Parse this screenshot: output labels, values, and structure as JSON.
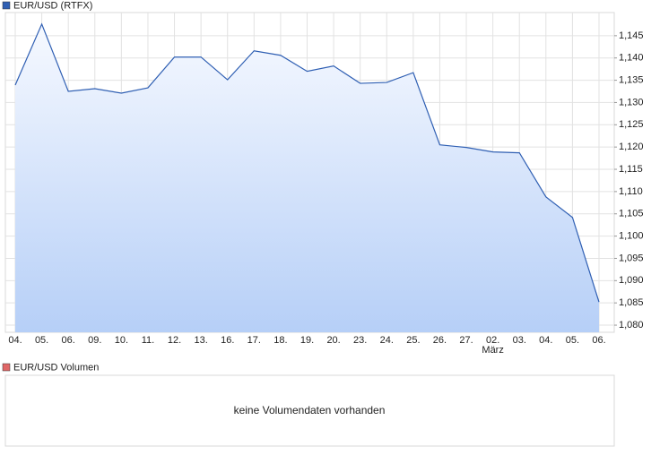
{
  "chart_data": [
    {
      "type": "area",
      "title": "EUR/USD (RTFX)",
      "categories": [
        "04.",
        "05.",
        "06.",
        "09.",
        "10.",
        "11.",
        "12.",
        "13.",
        "16.",
        "17.",
        "18.",
        "19.",
        "20.",
        "23.",
        "24.",
        "25.",
        "26.",
        "27.",
        "02.",
        "03.",
        "04.",
        "05.",
        "06."
      ],
      "x_sublabels": [
        null,
        null,
        null,
        null,
        null,
        null,
        null,
        null,
        null,
        null,
        null,
        null,
        null,
        null,
        null,
        null,
        null,
        null,
        "März",
        null,
        null,
        null,
        null
      ],
      "series": [
        {
          "name": "EUR/USD (RTFX)",
          "color": "#2f5fb3",
          "values": [
            1.1339,
            1.1476,
            1.1325,
            1.1331,
            1.1321,
            1.1333,
            1.1402,
            1.1402,
            1.1351,
            1.1416,
            1.1406,
            1.137,
            1.1382,
            1.1343,
            1.1345,
            1.1367,
            1.1205,
            1.1199,
            1.1189,
            1.1187,
            1.1088,
            1.1042,
            1.0852
          ]
        }
      ],
      "ylim": [
        1.0784,
        1.1502
      ],
      "yticks": [
        {
          "value": 1.08,
          "label": "1,080"
        },
        {
          "value": 1.085,
          "label": "1,085"
        },
        {
          "value": 1.09,
          "label": "1,090"
        },
        {
          "value": 1.095,
          "label": "1,095"
        },
        {
          "value": 1.1,
          "label": "1,100"
        },
        {
          "value": 1.105,
          "label": "1,105"
        },
        {
          "value": 1.11,
          "label": "1,110"
        },
        {
          "value": 1.115,
          "label": "1,115"
        },
        {
          "value": 1.12,
          "label": "1,120"
        },
        {
          "value": 1.125,
          "label": "1,125"
        },
        {
          "value": 1.13,
          "label": "1,130"
        },
        {
          "value": 1.135,
          "label": "1,135"
        },
        {
          "value": 1.14,
          "label": "1,140"
        },
        {
          "value": 1.145,
          "label": "1,145"
        }
      ],
      "grid": true
    },
    {
      "type": "empty",
      "title": "EUR/USD Volumen",
      "color": "#e06666",
      "message": "keine Volumendaten vorhanden"
    }
  ]
}
